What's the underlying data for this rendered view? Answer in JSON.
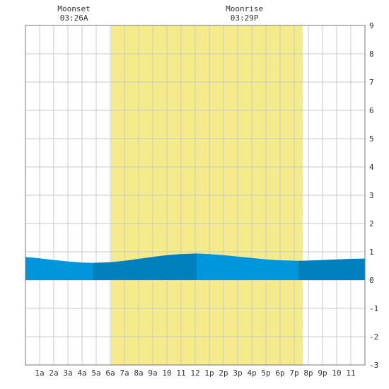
{
  "chart_data": {
    "type": "area",
    "x_unit": "hour of day",
    "xlim": [
      0,
      24
    ],
    "ylim": [
      -3,
      9
    ],
    "y_ticks": [
      -3,
      -2,
      -1,
      0,
      1,
      2,
      3,
      4,
      5,
      6,
      7,
      8,
      9
    ],
    "x_ticks": [
      {
        "x": 1,
        "label": "1a"
      },
      {
        "x": 2,
        "label": "2a"
      },
      {
        "x": 3,
        "label": "3a"
      },
      {
        "x": 4,
        "label": "4a"
      },
      {
        "x": 5,
        "label": "5a"
      },
      {
        "x": 6,
        "label": "6a"
      },
      {
        "x": 7,
        "label": "7a"
      },
      {
        "x": 8,
        "label": "8a"
      },
      {
        "x": 9,
        "label": "9a"
      },
      {
        "x": 10,
        "label": "10"
      },
      {
        "x": 11,
        "label": "11"
      },
      {
        "x": 12,
        "label": "12"
      },
      {
        "x": 13,
        "label": "1p"
      },
      {
        "x": 14,
        "label": "2p"
      },
      {
        "x": 15,
        "label": "3p"
      },
      {
        "x": 16,
        "label": "4p"
      },
      {
        "x": 17,
        "label": "5p"
      },
      {
        "x": 18,
        "label": "6p"
      },
      {
        "x": 19,
        "label": "7p"
      },
      {
        "x": 20,
        "label": "8p"
      },
      {
        "x": 21,
        "label": "9p"
      },
      {
        "x": 22,
        "label": "10"
      },
      {
        "x": 23,
        "label": "11"
      }
    ],
    "grid": true,
    "daylight": {
      "start": 6.05,
      "end": 19.6
    },
    "moon_events": [
      {
        "label": "Moonset",
        "time": "03:26A",
        "x": 3.43
      },
      {
        "label": "Moonrise",
        "time": "03:29P",
        "x": 15.48
      }
    ],
    "tide_segments": [
      {
        "start": 0,
        "end": 4.75,
        "tone": "light"
      },
      {
        "start": 4.75,
        "end": 12.1,
        "tone": "dark"
      },
      {
        "start": 12.1,
        "end": 19.3,
        "tone": "light"
      },
      {
        "start": 19.3,
        "end": 24,
        "tone": "dark"
      }
    ],
    "series": [
      {
        "x": [
          0,
          1,
          2,
          3,
          4,
          4.75,
          6,
          7,
          8,
          9,
          10,
          11,
          12.1,
          13,
          14,
          15,
          16,
          17,
          18,
          19.3,
          20,
          21,
          22,
          23,
          24
        ],
        "y": [
          0.82,
          0.77,
          0.71,
          0.66,
          0.62,
          0.61,
          0.63,
          0.68,
          0.75,
          0.82,
          0.88,
          0.92,
          0.94,
          0.92,
          0.88,
          0.83,
          0.78,
          0.73,
          0.7,
          0.68,
          0.69,
          0.71,
          0.73,
          0.75,
          0.76
        ]
      }
    ],
    "colors": {
      "daylight": "#f5eb8a",
      "tide_light": "#0096dc",
      "tide_dark": "#0080bc",
      "grid": "#c8c8c8",
      "axis": "#777777"
    }
  }
}
